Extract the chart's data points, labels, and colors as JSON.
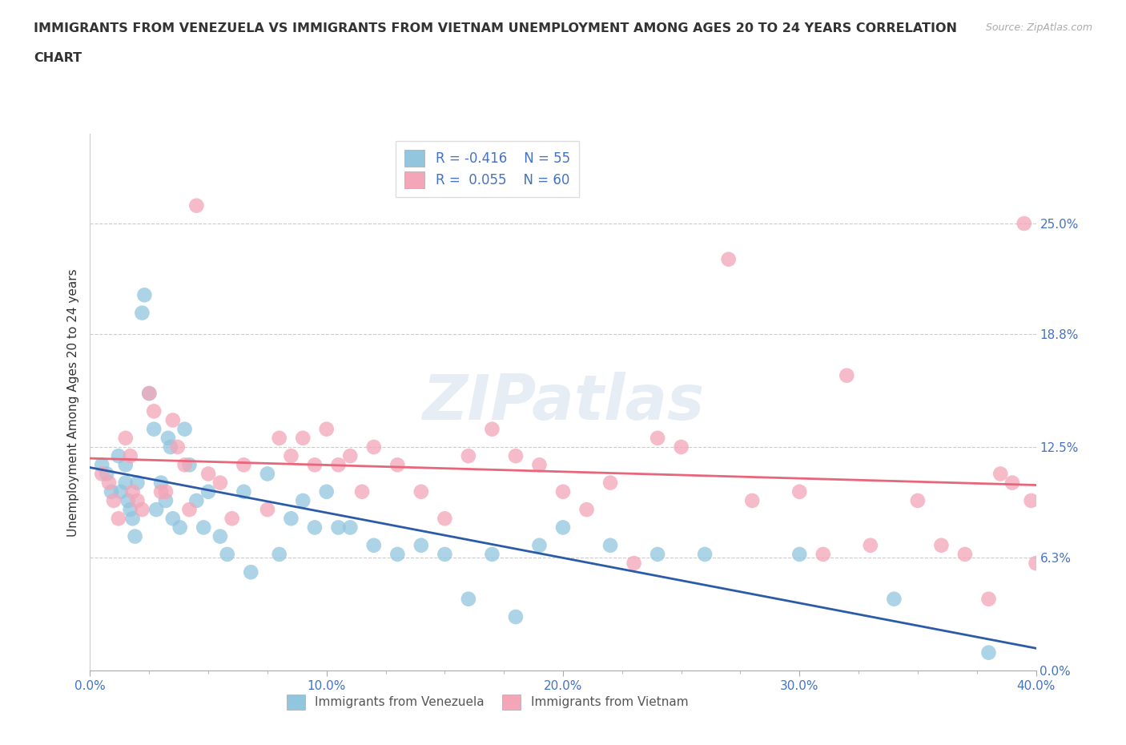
{
  "title_line1": "IMMIGRANTS FROM VENEZUELA VS IMMIGRANTS FROM VIETNAM UNEMPLOYMENT AMONG AGES 20 TO 24 YEARS CORRELATION",
  "title_line2": "CHART",
  "source_text": "Source: ZipAtlas.com",
  "ylabel": "Unemployment Among Ages 20 to 24 years",
  "xlim": [
    0.0,
    0.4
  ],
  "ylim": [
    0.0,
    0.3
  ],
  "xticks": [
    0.0,
    0.1,
    0.2,
    0.3,
    0.4
  ],
  "xticklabels": [
    "0.0%",
    "10.0%",
    "20.0%",
    "30.0%",
    "40.0%"
  ],
  "yticks": [
    0.0,
    0.063,
    0.125,
    0.188,
    0.25
  ],
  "yticklabels": [
    "0.0%",
    "6.3%",
    "12.5%",
    "18.8%",
    "25.0%"
  ],
  "venezuela_color": "#92C5DE",
  "vietnam_color": "#F4A5B8",
  "venezuela_line_color": "#2B5BA8",
  "vietnam_line_color": "#E8667A",
  "tick_color": "#4472C4",
  "legend_R_venezuela": "R = -0.416",
  "legend_N_venezuela": "N = 55",
  "legend_R_vietnam": "R =  0.055",
  "legend_N_vietnam": "N = 60",
  "watermark": "ZIPatlas",
  "venezuela_x": [
    0.005,
    0.007,
    0.009,
    0.012,
    0.013,
    0.015,
    0.015,
    0.016,
    0.017,
    0.018,
    0.019,
    0.02,
    0.022,
    0.023,
    0.025,
    0.027,
    0.028,
    0.03,
    0.032,
    0.033,
    0.034,
    0.035,
    0.038,
    0.04,
    0.042,
    0.045,
    0.048,
    0.05,
    0.055,
    0.058,
    0.065,
    0.068,
    0.075,
    0.08,
    0.085,
    0.09,
    0.095,
    0.1,
    0.105,
    0.11,
    0.12,
    0.13,
    0.14,
    0.15,
    0.16,
    0.17,
    0.18,
    0.19,
    0.2,
    0.22,
    0.24,
    0.26,
    0.3,
    0.34,
    0.38
  ],
  "venezuela_y": [
    0.115,
    0.11,
    0.1,
    0.12,
    0.1,
    0.115,
    0.105,
    0.095,
    0.09,
    0.085,
    0.075,
    0.105,
    0.2,
    0.21,
    0.155,
    0.135,
    0.09,
    0.105,
    0.095,
    0.13,
    0.125,
    0.085,
    0.08,
    0.135,
    0.115,
    0.095,
    0.08,
    0.1,
    0.075,
    0.065,
    0.1,
    0.055,
    0.11,
    0.065,
    0.085,
    0.095,
    0.08,
    0.1,
    0.08,
    0.08,
    0.07,
    0.065,
    0.07,
    0.065,
    0.04,
    0.065,
    0.03,
    0.07,
    0.08,
    0.07,
    0.065,
    0.065,
    0.065,
    0.04,
    0.01
  ],
  "vietnam_x": [
    0.005,
    0.008,
    0.01,
    0.012,
    0.015,
    0.017,
    0.018,
    0.02,
    0.022,
    0.025,
    0.027,
    0.03,
    0.032,
    0.035,
    0.037,
    0.04,
    0.042,
    0.045,
    0.05,
    0.055,
    0.06,
    0.065,
    0.075,
    0.08,
    0.085,
    0.09,
    0.095,
    0.1,
    0.105,
    0.11,
    0.115,
    0.12,
    0.13,
    0.14,
    0.15,
    0.16,
    0.17,
    0.18,
    0.19,
    0.2,
    0.21,
    0.22,
    0.23,
    0.24,
    0.25,
    0.27,
    0.28,
    0.3,
    0.31,
    0.32,
    0.33,
    0.35,
    0.36,
    0.37,
    0.38,
    0.385,
    0.39,
    0.395,
    0.398,
    0.4
  ],
  "vietnam_y": [
    0.11,
    0.105,
    0.095,
    0.085,
    0.13,
    0.12,
    0.1,
    0.095,
    0.09,
    0.155,
    0.145,
    0.1,
    0.1,
    0.14,
    0.125,
    0.115,
    0.09,
    0.26,
    0.11,
    0.105,
    0.085,
    0.115,
    0.09,
    0.13,
    0.12,
    0.13,
    0.115,
    0.135,
    0.115,
    0.12,
    0.1,
    0.125,
    0.115,
    0.1,
    0.085,
    0.12,
    0.135,
    0.12,
    0.115,
    0.1,
    0.09,
    0.105,
    0.06,
    0.13,
    0.125,
    0.23,
    0.095,
    0.1,
    0.065,
    0.165,
    0.07,
    0.095,
    0.07,
    0.065,
    0.04,
    0.11,
    0.105,
    0.25,
    0.095,
    0.06
  ],
  "background_color": "#ffffff",
  "grid_color": "#cccccc"
}
